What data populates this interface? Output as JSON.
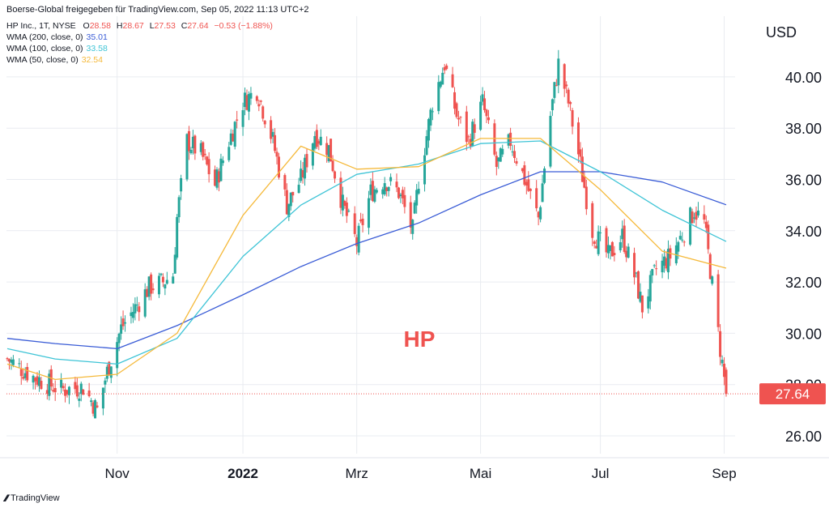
{
  "header": {
    "text": "Boerse-Global freigegeben für TradingView.com, Sep 05, 2022 11:13 UTC+2"
  },
  "ohlc": {
    "symbol": "HP Inc., 1T, NYSE",
    "o_label": "O",
    "o": "28.58",
    "h_label": "H",
    "h": "28.67",
    "l_label": "L",
    "l": "27.53",
    "c_label": "C",
    "c": "27.64",
    "change": "−0.53 (−1.88%)"
  },
  "indicators": [
    {
      "label": "WMA (200, close, 0)",
      "value": "35.01",
      "color": "#3a5cd6"
    },
    {
      "label": "WMA (100, close, 0)",
      "value": "33.58",
      "color": "#3ec4d6"
    },
    {
      "label": "WMA (50, close, 0)",
      "value": "32.54",
      "color": "#f5b93a"
    }
  ],
  "watermark": "HP",
  "price_label": "27.64",
  "footer": {
    "brand": "TradingView",
    "icon": "tradingview-logo-icon"
  },
  "colors": {
    "up": "#26a69a",
    "down": "#ef5350",
    "grid": "#e9ecf1",
    "text": "#131722"
  },
  "chart_data": {
    "type": "candlestick",
    "title": "HP Inc., 1T, NYSE",
    "ylabel": "USD",
    "ylim": [
      25,
      42
    ],
    "y_ticks": [
      "26.00",
      "28.00",
      "30.00",
      "32.00",
      "34.00",
      "36.00",
      "38.00",
      "40.00"
    ],
    "x_ticks": [
      "Nov",
      "2022",
      "Mrz",
      "Mai",
      "Jul",
      "Sep"
    ],
    "grid": true,
    "close_anchors": [
      [
        "2021-09-07",
        29.0
      ],
      [
        "2021-09-20",
        28.3
      ],
      [
        "2021-10-04",
        27.8
      ],
      [
        "2021-10-15",
        27.9
      ],
      [
        "2021-10-22",
        27.0
      ],
      [
        "2021-10-27",
        28.5
      ],
      [
        "2021-11-03",
        30.2
      ],
      [
        "2021-11-10",
        31.0
      ],
      [
        "2021-11-17",
        31.8
      ],
      [
        "2021-11-24",
        32.0
      ],
      [
        "2021-11-29",
        32.3
      ],
      [
        "2021-12-01",
        34.5
      ],
      [
        "2021-12-06",
        37.5
      ],
      [
        "2021-12-13",
        37.0
      ],
      [
        "2021-12-20",
        35.8
      ],
      [
        "2021-12-27",
        37.5
      ],
      [
        "2022-01-03",
        39.0
      ],
      [
        "2022-01-10",
        39.5
      ],
      [
        "2022-01-18",
        37.5
      ],
      [
        "2022-01-25",
        35.0
      ],
      [
        "2022-02-01",
        36.0
      ],
      [
        "2022-02-08",
        37.8
      ],
      [
        "2022-02-15",
        37.2
      ],
      [
        "2022-02-22",
        35.0
      ],
      [
        "2022-03-01",
        33.5
      ],
      [
        "2022-03-08",
        35.5
      ],
      [
        "2022-03-15",
        36.0
      ],
      [
        "2022-03-22",
        35.5
      ],
      [
        "2022-03-29",
        34.0
      ],
      [
        "2022-04-01",
        36.0
      ],
      [
        "2022-04-08",
        39.0
      ],
      [
        "2022-04-14",
        40.5
      ],
      [
        "2022-04-20",
        38.5
      ],
      [
        "2022-04-26",
        37.5
      ],
      [
        "2022-05-03",
        39.0
      ],
      [
        "2022-05-10",
        36.5
      ],
      [
        "2022-05-17",
        37.5
      ],
      [
        "2022-05-24",
        36.0
      ],
      [
        "2022-05-31",
        34.5
      ],
      [
        "2022-06-06",
        38.5
      ],
      [
        "2022-06-10",
        40.5
      ],
      [
        "2022-06-15",
        39.0
      ],
      [
        "2022-06-20",
        37.0
      ],
      [
        "2022-06-27",
        34.0
      ],
      [
        "2022-07-05",
        33.0
      ],
      [
        "2022-07-12",
        33.8
      ],
      [
        "2022-07-19",
        32.0
      ],
      [
        "2022-07-22",
        31.0
      ],
      [
        "2022-07-29",
        32.5
      ],
      [
        "2022-08-05",
        33.0
      ],
      [
        "2022-08-12",
        34.0
      ],
      [
        "2022-08-17",
        34.8
      ],
      [
        "2022-08-22",
        34.3
      ],
      [
        "2022-08-25",
        32.5
      ],
      [
        "2022-08-29",
        30.0
      ],
      [
        "2022-09-02",
        27.64
      ]
    ],
    "series": [
      {
        "name": "WMA (200, close, 0)",
        "color": "#3a5cd6",
        "points": [
          [
            "2021-09-07",
            29.8
          ],
          [
            "2021-10-01",
            29.6
          ],
          [
            "2021-11-01",
            29.4
          ],
          [
            "2021-12-01",
            30.3
          ],
          [
            "2022-01-03",
            31.5
          ],
          [
            "2022-02-01",
            32.6
          ],
          [
            "2022-03-01",
            33.5
          ],
          [
            "2022-04-01",
            34.3
          ],
          [
            "2022-05-02",
            35.4
          ],
          [
            "2022-06-01",
            36.3
          ],
          [
            "2022-07-01",
            36.3
          ],
          [
            "2022-08-01",
            35.9
          ],
          [
            "2022-09-02",
            35.01
          ]
        ]
      },
      {
        "name": "WMA (100, close, 0)",
        "color": "#3ec4d6",
        "points": [
          [
            "2021-09-07",
            29.4
          ],
          [
            "2021-10-01",
            29.0
          ],
          [
            "2021-11-01",
            28.8
          ],
          [
            "2021-12-01",
            29.8
          ],
          [
            "2022-01-03",
            33.0
          ],
          [
            "2022-02-01",
            35.0
          ],
          [
            "2022-03-01",
            36.2
          ],
          [
            "2022-04-01",
            36.6
          ],
          [
            "2022-05-02",
            37.4
          ],
          [
            "2022-06-01",
            37.5
          ],
          [
            "2022-07-01",
            36.3
          ],
          [
            "2022-08-01",
            34.8
          ],
          [
            "2022-09-02",
            33.58
          ]
        ]
      },
      {
        "name": "WMA (50, close, 0)",
        "color": "#f5b93a",
        "points": [
          [
            "2021-09-07",
            28.8
          ],
          [
            "2021-10-01",
            28.2
          ],
          [
            "2021-11-01",
            28.4
          ],
          [
            "2021-12-01",
            30.0
          ],
          [
            "2022-01-03",
            34.6
          ],
          [
            "2022-02-01",
            37.3
          ],
          [
            "2022-03-01",
            36.4
          ],
          [
            "2022-04-01",
            36.5
          ],
          [
            "2022-05-02",
            37.6
          ],
          [
            "2022-06-01",
            37.6
          ],
          [
            "2022-07-01",
            35.6
          ],
          [
            "2022-08-01",
            33.2
          ],
          [
            "2022-09-02",
            32.54
          ]
        ]
      }
    ],
    "last_price": 27.64
  }
}
